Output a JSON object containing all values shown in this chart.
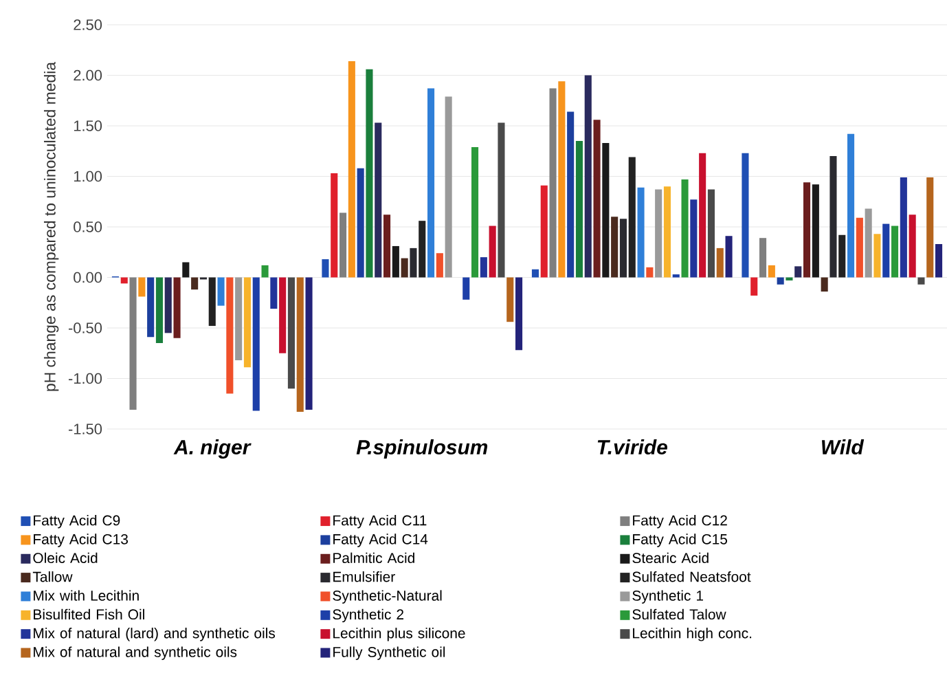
{
  "chart_data": {
    "type": "bar",
    "categories": [
      "A. niger",
      "P.spinulosum",
      "T.viride",
      "Wild"
    ],
    "ylabel": "pH change as compared to uninoculated media",
    "ylim": [
      -1.5,
      2.5
    ],
    "yticks": [
      {
        "value": -1.5,
        "label": "-1.50"
      },
      {
        "value": -1,
        "label": "-1.00"
      },
      {
        "value": -0.5,
        "label": "-0.50"
      },
      {
        "value": 0,
        "label": "0.00"
      },
      {
        "value": 0.5,
        "label": "0.50"
      },
      {
        "value": 1,
        "label": "1.00"
      },
      {
        "value": 1.5,
        "label": "1.50"
      },
      {
        "value": 2,
        "label": "2.00"
      },
      {
        "value": 2.5,
        "label": "2.50"
      }
    ],
    "grid": "y",
    "legend": "bottom",
    "series": [
      {
        "name": "Fatty Acid C9",
        "color": "#1f4fb4",
        "values": [
          0.01,
          0.18,
          0.08,
          1.23
        ]
      },
      {
        "name": "Fatty Acid C11",
        "color": "#e0202c",
        "values": [
          -0.06,
          1.03,
          0.91,
          -0.18
        ]
      },
      {
        "name": "Fatty Acid C12",
        "color": "#7f7f7f",
        "values": [
          -1.31,
          0.64,
          1.87,
          0.39
        ]
      },
      {
        "name": "Fatty Acid C13",
        "color": "#f7941d",
        "values": [
          -0.19,
          2.14,
          1.94,
          0.12
        ]
      },
      {
        "name": "Fatty Acid C14",
        "color": "#1c3f9e",
        "values": [
          -0.59,
          1.08,
          1.64,
          -0.07
        ]
      },
      {
        "name": "Fatty Acid C15",
        "color": "#1a7f3c",
        "values": [
          -0.65,
          2.06,
          1.35,
          -0.03
        ]
      },
      {
        "name": "Oleic Acid",
        "color": "#2a2a5e",
        "values": [
          -0.55,
          1.53,
          2.0,
          0.11
        ]
      },
      {
        "name": "Palmitic Acid",
        "color": "#6b1e1e",
        "values": [
          -0.6,
          0.62,
          1.56,
          0.94
        ]
      },
      {
        "name": "Stearic Acid",
        "color": "#1a1a1a",
        "values": [
          0.15,
          0.31,
          1.33,
          0.92
        ]
      },
      {
        "name": "Tallow",
        "color": "#4a2a1e",
        "values": [
          -0.12,
          0.19,
          0.6,
          -0.14
        ]
      },
      {
        "name": "Emulsifier",
        "color": "#2a2a30",
        "values": [
          -0.02,
          0.29,
          0.58,
          1.2
        ]
      },
      {
        "name": "Sulfated Neatsfoot",
        "color": "#222222",
        "values": [
          -0.48,
          0.56,
          1.19,
          0.42
        ]
      },
      {
        "name": "Mix with Lecithin",
        "color": "#2f7fd8",
        "values": [
          -0.28,
          1.87,
          0.89,
          1.42
        ]
      },
      {
        "name": "Synthetic-Natural",
        "color": "#f0502a",
        "values": [
          -1.15,
          0.24,
          0.1,
          0.59
        ]
      },
      {
        "name": "Synthetic 1",
        "color": "#9a9a9a",
        "values": [
          -0.82,
          1.79,
          0.87,
          0.68
        ]
      },
      {
        "name": "Bisulfited Fish Oil",
        "color": "#f7b32b",
        "values": [
          -0.89,
          0,
          0.9,
          0.43
        ]
      },
      {
        "name": "Synthetic 2",
        "color": "#1d3fa8",
        "values": [
          -1.32,
          -0.22,
          0.03,
          0.53
        ]
      },
      {
        "name": "Sulfated Talow",
        "color": "#2a9a3a",
        "values": [
          0.12,
          1.29,
          0.97,
          0.51
        ]
      },
      {
        "name": "Mix of natural (lard) and synthetic oils",
        "color": "#22349a",
        "values": [
          -0.31,
          0.2,
          0.77,
          0.99
        ]
      },
      {
        "name": "Lecithin plus silicone",
        "color": "#c8102e",
        "values": [
          -0.75,
          0.51,
          1.23,
          0.62
        ]
      },
      {
        "name": "Lecithin high conc.",
        "color": "#4a4a4a",
        "values": [
          -1.1,
          1.53,
          0.87,
          -0.07
        ]
      },
      {
        "name": "Mix of natural and synthetic oils",
        "color": "#b5651d",
        "values": [
          -1.33,
          -0.44,
          0.29,
          0.99
        ]
      },
      {
        "name": "Fully Synthetic oil",
        "color": "#23237a",
        "values": [
          -1.31,
          -0.72,
          0.41,
          0.33
        ]
      }
    ]
  }
}
